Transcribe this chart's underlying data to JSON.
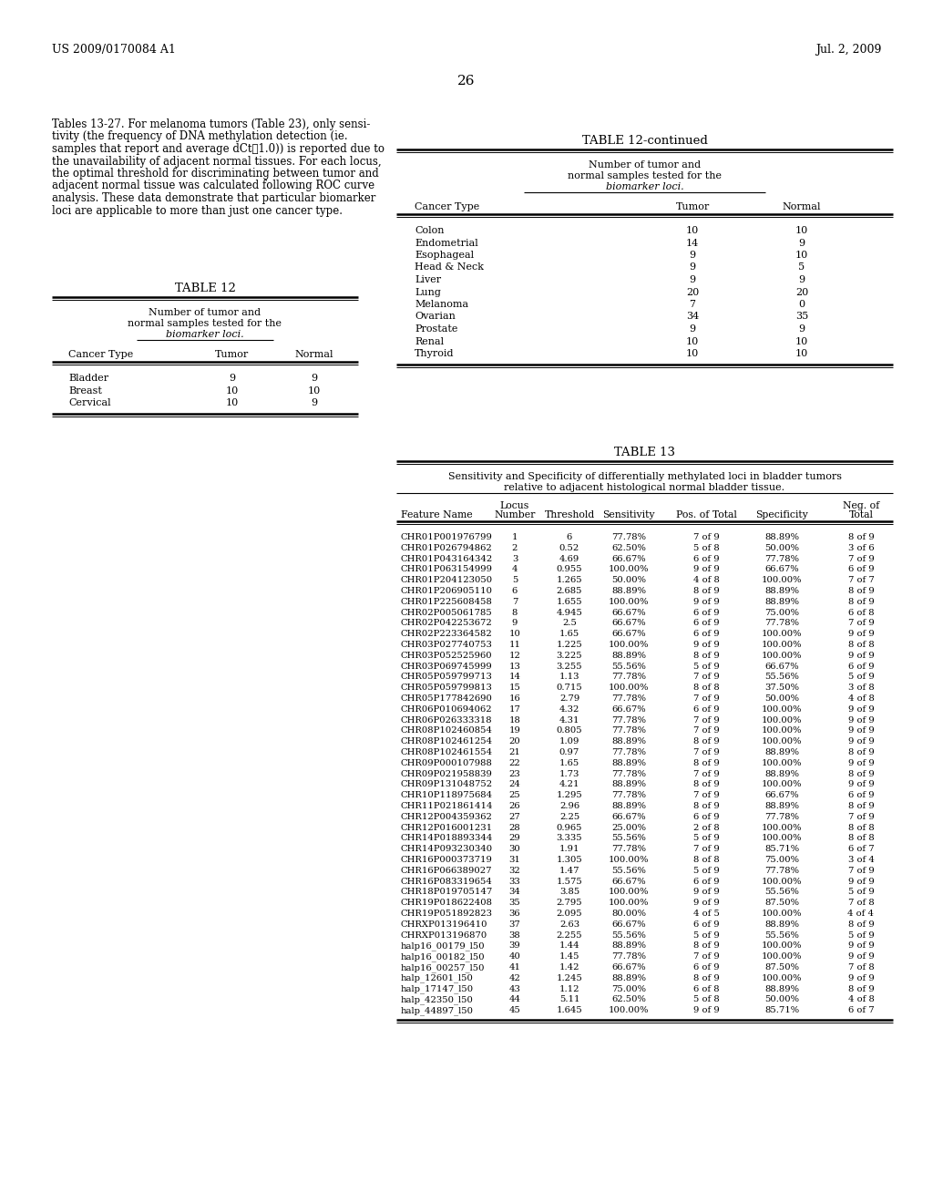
{
  "header_left": "US 2009/0170084 A1",
  "header_right": "Jul. 2, 2009",
  "page_number": "26",
  "body_text_lines": [
    "Tables 13-27. For melanoma tumors (Table 23), only sensi-",
    "tivity (the frequency of DNA methylation detection (ie.",
    "samples that report and average dCt≧1.0)) is reported due to",
    "the unavailability of adjacent normal tissues. For each locus,",
    "the optimal threshold for discriminating between tumor and",
    "adjacent normal tissue was calculated following ROC curve",
    "analysis. These data demonstrate that particular biomarker",
    "loci are applicable to more than just one cancer type."
  ],
  "table12_title": "TABLE 12",
  "table12_subtitle1": "Number of tumor and",
  "table12_subtitle2": "normal samples tested for the",
  "table12_subtitle3": "biomarker loci.",
  "table12_headers": [
    "Cancer Type",
    "Tumor",
    "Normal"
  ],
  "table12_data": [
    [
      "Bladder",
      "9",
      "9"
    ],
    [
      "Breast",
      "10",
      "10"
    ],
    [
      "Cervical",
      "10",
      "9"
    ]
  ],
  "table12cont_title": "TABLE 12-continued",
  "table12cont_subtitle1": "Number of tumor and",
  "table12cont_subtitle2": "normal samples tested for the",
  "table12cont_subtitle3": "biomarker loci.",
  "table12cont_headers": [
    "Cancer Type",
    "Tumor",
    "Normal"
  ],
  "table12cont_data": [
    [
      "Colon",
      "10",
      "10"
    ],
    [
      "Endometrial",
      "14",
      "9"
    ],
    [
      "Esophageal",
      "9",
      "10"
    ],
    [
      "Head & Neck",
      "9",
      "5"
    ],
    [
      "Liver",
      "9",
      "9"
    ],
    [
      "Lung",
      "20",
      "20"
    ],
    [
      "Melanoma",
      "7",
      "0"
    ],
    [
      "Ovarian",
      "34",
      "35"
    ],
    [
      "Prostate",
      "9",
      "9"
    ],
    [
      "Renal",
      "10",
      "10"
    ],
    [
      "Thyroid",
      "10",
      "10"
    ]
  ],
  "table13_title": "TABLE 13",
  "table13_subtitle1": "Sensitivity and Specificity of differentially methylated loci in bladder tumors",
  "table13_subtitle2": "relative to adjacent histological normal bladder tissue.",
  "table13_data": [
    [
      "CHR01P001976799",
      "1",
      "6",
      "77.78%",
      "7 of 9",
      "88.89%",
      "8 of 9"
    ],
    [
      "CHR01P026794862",
      "2",
      "0.52",
      "62.50%",
      "5 of 8",
      "50.00%",
      "3 of 6"
    ],
    [
      "CHR01P043164342",
      "3",
      "4.69",
      "66.67%",
      "6 of 9",
      "77.78%",
      "7 of 9"
    ],
    [
      "CHR01P063154999",
      "4",
      "0.955",
      "100.00%",
      "9 of 9",
      "66.67%",
      "6 of 9"
    ],
    [
      "CHR01P204123050",
      "5",
      "1.265",
      "50.00%",
      "4 of 8",
      "100.00%",
      "7 of 7"
    ],
    [
      "CHR01P206905110",
      "6",
      "2.685",
      "88.89%",
      "8 of 9",
      "88.89%",
      "8 of 9"
    ],
    [
      "CHR01P225608458",
      "7",
      "1.655",
      "100.00%",
      "9 of 9",
      "88.89%",
      "8 of 9"
    ],
    [
      "CHR02P005061785",
      "8",
      "4.945",
      "66.67%",
      "6 of 9",
      "75.00%",
      "6 of 8"
    ],
    [
      "CHR02P042253672",
      "9",
      "2.5",
      "66.67%",
      "6 of 9",
      "77.78%",
      "7 of 9"
    ],
    [
      "CHR02P223364582",
      "10",
      "1.65",
      "66.67%",
      "6 of 9",
      "100.00%",
      "9 of 9"
    ],
    [
      "CHR03P027740753",
      "11",
      "1.225",
      "100.00%",
      "9 of 9",
      "100.00%",
      "8 of 8"
    ],
    [
      "CHR03P052525960",
      "12",
      "3.225",
      "88.89%",
      "8 of 9",
      "100.00%",
      "9 of 9"
    ],
    [
      "CHR03P069745999",
      "13",
      "3.255",
      "55.56%",
      "5 of 9",
      "66.67%",
      "6 of 9"
    ],
    [
      "CHR05P059799713",
      "14",
      "1.13",
      "77.78%",
      "7 of 9",
      "55.56%",
      "5 of 9"
    ],
    [
      "CHR05P059799813",
      "15",
      "0.715",
      "100.00%",
      "8 of 8",
      "37.50%",
      "3 of 8"
    ],
    [
      "CHR05P177842690",
      "16",
      "2.79",
      "77.78%",
      "7 of 9",
      "50.00%",
      "4 of 8"
    ],
    [
      "CHR06P010694062",
      "17",
      "4.32",
      "66.67%",
      "6 of 9",
      "100.00%",
      "9 of 9"
    ],
    [
      "CHR06P026333318",
      "18",
      "4.31",
      "77.78%",
      "7 of 9",
      "100.00%",
      "9 of 9"
    ],
    [
      "CHR08P102460854",
      "19",
      "0.805",
      "77.78%",
      "7 of 9",
      "100.00%",
      "9 of 9"
    ],
    [
      "CHR08P102461254",
      "20",
      "1.09",
      "88.89%",
      "8 of 9",
      "100.00%",
      "9 of 9"
    ],
    [
      "CHR08P102461554",
      "21",
      "0.97",
      "77.78%",
      "7 of 9",
      "88.89%",
      "8 of 9"
    ],
    [
      "CHR09P000107988",
      "22",
      "1.65",
      "88.89%",
      "8 of 9",
      "100.00%",
      "9 of 9"
    ],
    [
      "CHR09P021958839",
      "23",
      "1.73",
      "77.78%",
      "7 of 9",
      "88.89%",
      "8 of 9"
    ],
    [
      "CHR09P131048752",
      "24",
      "4.21",
      "88.89%",
      "8 of 9",
      "100.00%",
      "9 of 9"
    ],
    [
      "CHR10P118975684",
      "25",
      "1.295",
      "77.78%",
      "7 of 9",
      "66.67%",
      "6 of 9"
    ],
    [
      "CHR11P021861414",
      "26",
      "2.96",
      "88.89%",
      "8 of 9",
      "88.89%",
      "8 of 9"
    ],
    [
      "CHR12P004359362",
      "27",
      "2.25",
      "66.67%",
      "6 of 9",
      "77.78%",
      "7 of 9"
    ],
    [
      "CHR12P016001231",
      "28",
      "0.965",
      "25.00%",
      "2 of 8",
      "100.00%",
      "8 of 8"
    ],
    [
      "CHR14P018893344",
      "29",
      "3.335",
      "55.56%",
      "5 of 9",
      "100.00%",
      "8 of 8"
    ],
    [
      "CHR14P093230340",
      "30",
      "1.91",
      "77.78%",
      "7 of 9",
      "85.71%",
      "6 of 7"
    ],
    [
      "CHR16P000373719",
      "31",
      "1.305",
      "100.00%",
      "8 of 8",
      "75.00%",
      "3 of 4"
    ],
    [
      "CHR16P066389027",
      "32",
      "1.47",
      "55.56%",
      "5 of 9",
      "77.78%",
      "7 of 9"
    ],
    [
      "CHR16P083319654",
      "33",
      "1.575",
      "66.67%",
      "6 of 9",
      "100.00%",
      "9 of 9"
    ],
    [
      "CHR18P019705147",
      "34",
      "3.85",
      "100.00%",
      "9 of 9",
      "55.56%",
      "5 of 9"
    ],
    [
      "CHR19P018622408",
      "35",
      "2.795",
      "100.00%",
      "9 of 9",
      "87.50%",
      "7 of 8"
    ],
    [
      "CHR19P051892823",
      "36",
      "2.095",
      "80.00%",
      "4 of 5",
      "100.00%",
      "4 of 4"
    ],
    [
      "CHRXP013196410",
      "37",
      "2.63",
      "66.67%",
      "6 of 9",
      "88.89%",
      "8 of 9"
    ],
    [
      "CHRXP013196870",
      "38",
      "2.255",
      "55.56%",
      "5 of 9",
      "55.56%",
      "5 of 9"
    ],
    [
      "halp16_00179_l50",
      "39",
      "1.44",
      "88.89%",
      "8 of 9",
      "100.00%",
      "9 of 9"
    ],
    [
      "halp16_00182_l50",
      "40",
      "1.45",
      "77.78%",
      "7 of 9",
      "100.00%",
      "9 of 9"
    ],
    [
      "halp16_00257_l50",
      "41",
      "1.42",
      "66.67%",
      "6 of 9",
      "87.50%",
      "7 of 8"
    ],
    [
      "halp_12601_l50",
      "42",
      "1.245",
      "88.89%",
      "8 of 9",
      "100.00%",
      "9 of 9"
    ],
    [
      "halp_17147_l50",
      "43",
      "1.12",
      "75.00%",
      "6 of 8",
      "88.89%",
      "8 of 9"
    ],
    [
      "halp_42350_l50",
      "44",
      "5.11",
      "62.50%",
      "5 of 8",
      "50.00%",
      "4 of 8"
    ],
    [
      "halp_44897_l50",
      "45",
      "1.645",
      "100.00%",
      "9 of 9",
      "85.71%",
      "6 of 7"
    ]
  ],
  "bg_color": "#ffffff"
}
